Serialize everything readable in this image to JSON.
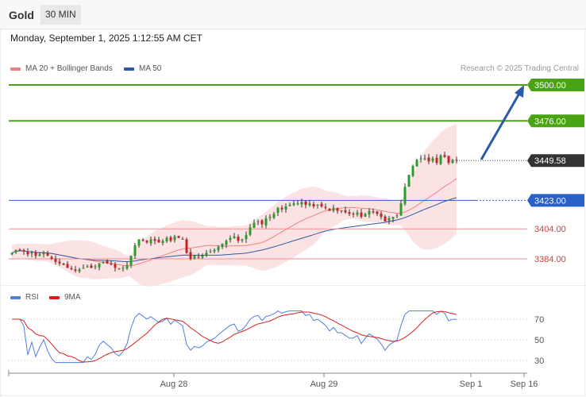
{
  "header": {
    "symbol": "Gold",
    "interval": "30 MIN"
  },
  "timestamp": "Monday, September 1, 2025 1:12:55 AM CET",
  "credit": "Research © 2025 Trading Central",
  "legend": {
    "ma20": {
      "label": "MA 20 + Bollinger Bands",
      "color": "#f08080"
    },
    "ma50": {
      "label": "MA 50",
      "color": "#2b5aa8"
    },
    "rsi": {
      "label": "RSI",
      "color": "#4f7fe0"
    },
    "rsi_ma": {
      "label": "9MA",
      "color": "#d62020"
    }
  },
  "colors": {
    "bull": "#2e9b2e",
    "bear": "#c92020",
    "target": "#4aa312",
    "pivot": "#2b60c8",
    "support": "#f29292",
    "arrow": "#2b5aa8",
    "last": "#333333"
  },
  "chart_data": [
    {
      "type": "candlestick",
      "title": "Gold",
      "interval": "30 MIN",
      "x_ticks": [
        "Aug 28",
        "Aug 29",
        "Sep 1",
        "Sep 16"
      ],
      "last_price": 3449.58,
      "key_levels": [
        {
          "label": "3500.00",
          "value": 3500.0,
          "kind": "target"
        },
        {
          "label": "3476.00",
          "value": 3476.0,
          "kind": "target"
        },
        {
          "label": "3423.00",
          "value": 3423.0,
          "kind": "pivot"
        },
        {
          "label": "3404.00",
          "value": 3404.0,
          "kind": "support"
        },
        {
          "label": "3384.00",
          "value": 3384.0,
          "kind": "support"
        }
      ],
      "series_names": [
        "MA 20 + Bollinger Bands",
        "MA 50"
      ],
      "close_approx": [
        3388,
        3390,
        3390,
        3389,
        3387,
        3388,
        3386,
        3387,
        3388,
        3386,
        3384,
        3382,
        3381,
        3380,
        3378,
        3377,
        3376,
        3377,
        3378,
        3379,
        3378,
        3379,
        3381,
        3382,
        3381,
        3380,
        3378,
        3377,
        3378,
        3380,
        3386,
        3393,
        3397,
        3396,
        3395,
        3397,
        3396,
        3395,
        3396,
        3398,
        3396,
        3399,
        3398,
        3397,
        3388,
        3384,
        3386,
        3385,
        3386,
        3388,
        3389,
        3390,
        3392,
        3394,
        3396,
        3398,
        3399,
        3396,
        3397,
        3400,
        3405,
        3408,
        3409,
        3407,
        3411,
        3412,
        3414,
        3418,
        3417,
        3419,
        3420,
        3421,
        3421,
        3422,
        3420,
        3421,
        3419,
        3420,
        3419,
        3418,
        3416,
        3418,
        3416,
        3416,
        3415,
        3414,
        3414,
        3415,
        3412,
        3414,
        3416,
        3415,
        3414,
        3412,
        3409,
        3411,
        3412,
        3413,
        3421,
        3432,
        3440,
        3446,
        3450,
        3451,
        3451,
        3449,
        3451,
        3448,
        3453,
        3452,
        3448,
        3450,
        3450
      ],
      "rsi_ticks": [
        70,
        50,
        30
      ],
      "annotation": "arrow toward 3500.00"
    }
  ]
}
